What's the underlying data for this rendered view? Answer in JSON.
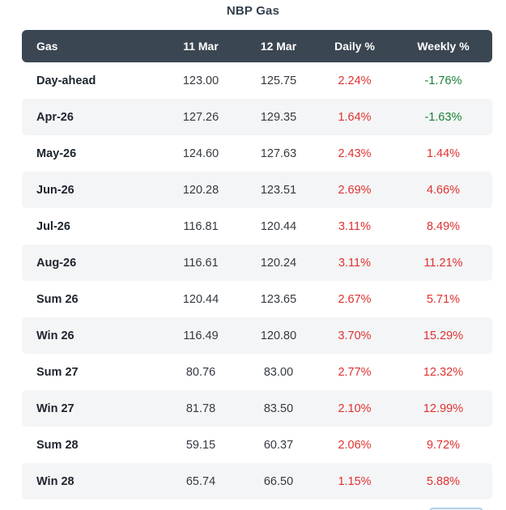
{
  "title": "NBP Gas",
  "colors": {
    "header_bg": "#3a4651",
    "header_text": "#ffffff",
    "stripe": "#f4f5f6",
    "title_text": "#33404d",
    "label_text": "#1c242e",
    "number_text": "#343a42",
    "red": "#e03131",
    "green": "#188038",
    "partial_edge": "#aecfe8"
  },
  "chart_data": {
    "type": "table",
    "title": "NBP Gas",
    "columns": [
      "Gas",
      "11 Mar",
      "12 Mar",
      "Daily %",
      "Weekly %"
    ],
    "rows": [
      {
        "label": "Day-ahead",
        "mar11": "123.00",
        "mar12": "125.75",
        "daily": "2.24%",
        "daily_color": "red",
        "weekly": "-1.76%",
        "weekly_color": "green"
      },
      {
        "label": "Apr-26",
        "mar11": "127.26",
        "mar12": "129.35",
        "daily": "1.64%",
        "daily_color": "red",
        "weekly": "-1.63%",
        "weekly_color": "green"
      },
      {
        "label": "May-26",
        "mar11": "124.60",
        "mar12": "127.63",
        "daily": "2.43%",
        "daily_color": "red",
        "weekly": "1.44%",
        "weekly_color": "red"
      },
      {
        "label": "Jun-26",
        "mar11": "120.28",
        "mar12": "123.51",
        "daily": "2.69%",
        "daily_color": "red",
        "weekly": "4.66%",
        "weekly_color": "red"
      },
      {
        "label": "Jul-26",
        "mar11": "116.81",
        "mar12": "120.44",
        "daily": "3.11%",
        "daily_color": "red",
        "weekly": "8.49%",
        "weekly_color": "red"
      },
      {
        "label": "Aug-26",
        "mar11": "116.61",
        "mar12": "120.24",
        "daily": "3.11%",
        "daily_color": "red",
        "weekly": "11.21%",
        "weekly_color": "red"
      },
      {
        "label": "Sum 26",
        "mar11": "120.44",
        "mar12": "123.65",
        "daily": "2.67%",
        "daily_color": "red",
        "weekly": "5.71%",
        "weekly_color": "red"
      },
      {
        "label": "Win 26",
        "mar11": "116.49",
        "mar12": "120.80",
        "daily": "3.70%",
        "daily_color": "red",
        "weekly": "15.29%",
        "weekly_color": "red"
      },
      {
        "label": "Sum 27",
        "mar11": "80.76",
        "mar12": "83.00",
        "daily": "2.77%",
        "daily_color": "red",
        "weekly": "12.32%",
        "weekly_color": "red"
      },
      {
        "label": "Win 27",
        "mar11": "81.78",
        "mar12": "83.50",
        "daily": "2.10%",
        "daily_color": "red",
        "weekly": "12.99%",
        "weekly_color": "red"
      },
      {
        "label": "Sum 28",
        "mar11": "59.15",
        "mar12": "60.37",
        "daily": "2.06%",
        "daily_color": "red",
        "weekly": "9.72%",
        "weekly_color": "red"
      },
      {
        "label": "Win 28",
        "mar11": "65.74",
        "mar12": "66.50",
        "daily": "1.15%",
        "daily_color": "red",
        "weekly": "5.88%",
        "weekly_color": "red"
      }
    ]
  }
}
